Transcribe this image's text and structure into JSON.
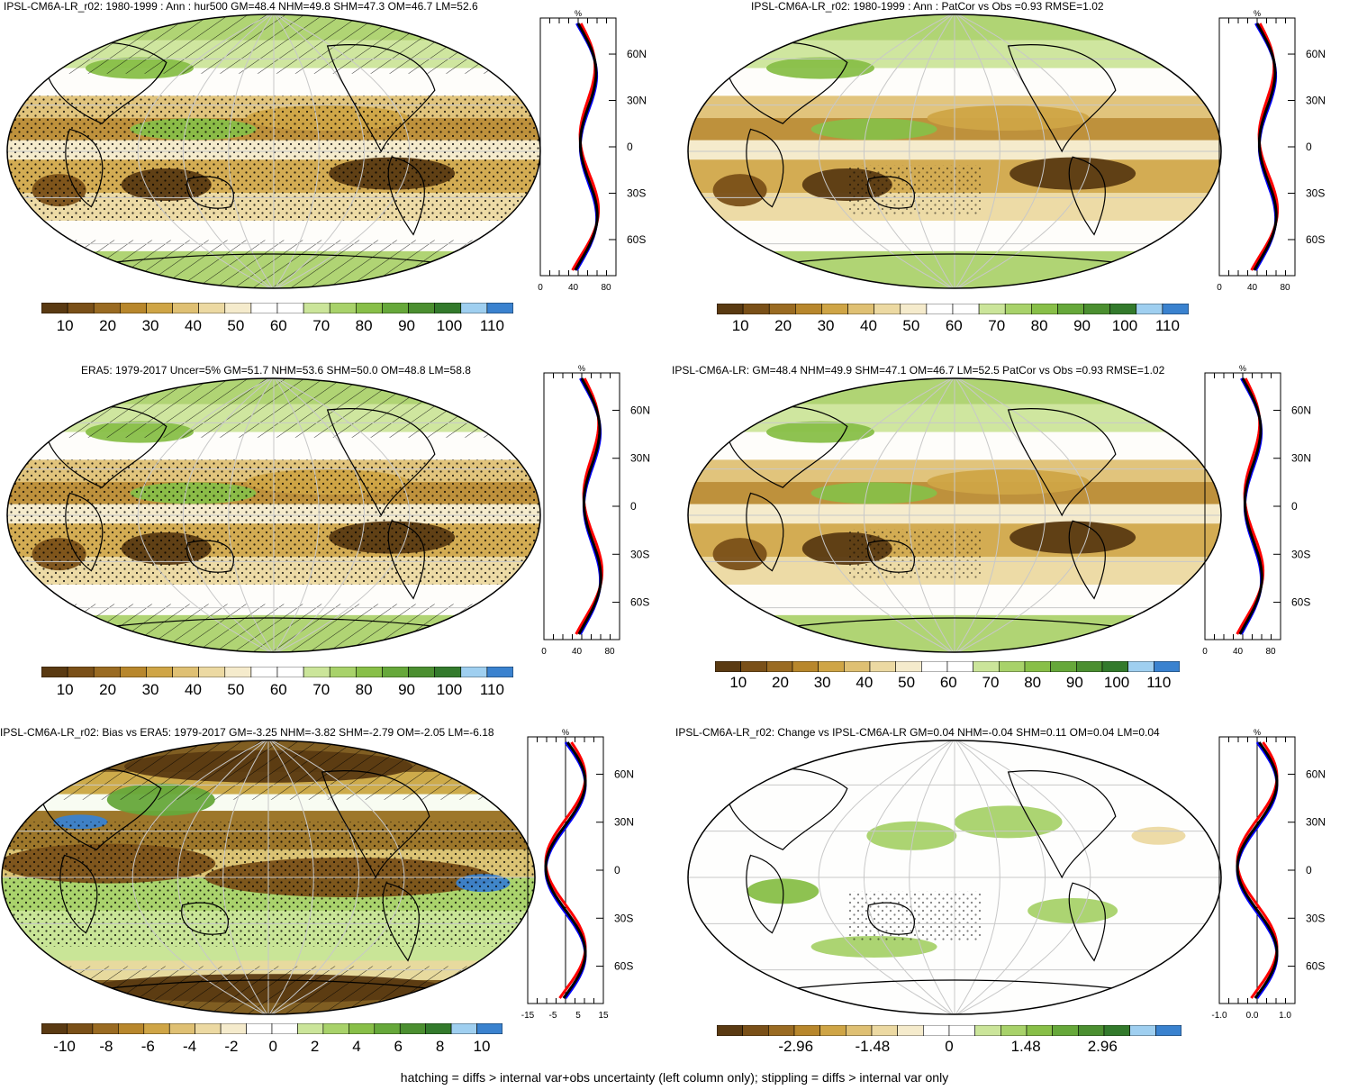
{
  "colors": {
    "scale": [
      "#5a3a12",
      "#7a5018",
      "#9a6b22",
      "#b8872c",
      "#cfa546",
      "#dfc073",
      "#ecd9a2",
      "#f5ebcc",
      "#ffffff",
      "#ffffff",
      "#cbe59a",
      "#a8d26a",
      "#88bf48",
      "#66a83a",
      "#4b8f30",
      "#337a2c",
      "#9fcff0",
      "#3a82cf"
    ],
    "hatch": "#000000",
    "model_line": "#ff0000",
    "obs_line": "#0000ff",
    "mean_line": "#000000"
  },
  "panels": [
    {
      "id": "p1",
      "title": "IPSL-CM6A-LR_r02: 1980-1999 : Ann : hur500 GM=48.4 NHM=49.8 SHM=47.3 OM=46.7 LM=52.6",
      "pattern": "stipple-hatch",
      "profile": {
        "unit": "%",
        "lat_ticks": [
          "60N",
          "30N",
          "0",
          "30S",
          "60S"
        ],
        "x_ticks": [
          "0",
          "40",
          "80"
        ]
      },
      "colorbar": {
        "labels": [
          "10",
          "20",
          "30",
          "40",
          "50",
          "60",
          "70",
          "80",
          "90",
          "100",
          "110"
        ]
      }
    },
    {
      "id": "p2",
      "title": "IPSL-CM6A-LR_r02: 1980-1999 : Ann : PatCor vs Obs =0.93 RMSE=1.02",
      "pattern": "sparse",
      "profile": {
        "unit": "%",
        "lat_ticks": [
          "60N",
          "30N",
          "0",
          "30S",
          "60S"
        ],
        "x_ticks": [
          "0",
          "40",
          "80"
        ]
      },
      "colorbar": {
        "labels": [
          "10",
          "20",
          "30",
          "40",
          "50",
          "60",
          "70",
          "80",
          "90",
          "100",
          "110"
        ]
      }
    },
    {
      "id": "p3",
      "title": "ERA5: 1979-2017 Uncer=5% GM=51.7 NHM=53.6 SHM=50.0 OM=48.8 LM=58.8",
      "pattern": "stipple-hatch",
      "profile": {
        "unit": "%",
        "lat_ticks": [
          "60N",
          "30N",
          "0",
          "30S",
          "60S"
        ],
        "x_ticks": [
          "0",
          "40",
          "80"
        ]
      },
      "colorbar": {
        "labels": [
          "10",
          "20",
          "30",
          "40",
          "50",
          "60",
          "70",
          "80",
          "90",
          "100",
          "110"
        ]
      }
    },
    {
      "id": "p4",
      "title": "IPSL-CM6A-LR: GM=48.4 NHM=49.9 SHM=47.1 OM=46.7 LM=52.5 PatCor vs Obs =0.93 RMSE=1.02",
      "pattern": "sparse",
      "profile": {
        "unit": "%",
        "lat_ticks": [
          "60N",
          "30N",
          "0",
          "30S",
          "60S"
        ],
        "x_ticks": [
          "0",
          "40",
          "80"
        ]
      },
      "colorbar": {
        "labels": [
          "10",
          "20",
          "30",
          "40",
          "50",
          "60",
          "70",
          "80",
          "90",
          "100",
          "110"
        ]
      }
    },
    {
      "id": "p5",
      "title": "IPSL-CM6A-LR_r02: Bias vs ERA5: 1979-2017 GM=-3.25 NHM=-3.82 SHM=-2.79 OM=-2.05 LM=-6.18",
      "pattern": "stipple-hatch",
      "profile": {
        "unit": "%",
        "lat_ticks": [
          "60N",
          "30N",
          "0",
          "30S",
          "60S"
        ],
        "x_ticks": [
          "-15",
          "-5",
          "5",
          "15"
        ]
      },
      "colorbar": {
        "labels": [
          "-10",
          "-8",
          "-6",
          "-4",
          "-2",
          "0",
          "2",
          "4",
          "6",
          "8",
          "10"
        ]
      }
    },
    {
      "id": "p6",
      "title": "IPSL-CM6A-LR_r02: Change vs IPSL-CM6A-LR GM=0.04 NHM=-0.04 SHM=0.11 OM=0.04 LM=0.04",
      "pattern": "sparse",
      "profile": {
        "unit": "%",
        "lat_ticks": [
          "60N",
          "30N",
          "0",
          "30S",
          "60S"
        ],
        "x_ticks": [
          "-1.0",
          "0.0",
          "1.0"
        ]
      },
      "colorbar": {
        "labels": [
          "-2.96",
          "-1.48",
          "0",
          "1.48",
          "2.96"
        ]
      }
    }
  ],
  "footer": "hatching = diffs > internal var+obs uncertainty (left column only); stippling = diffs > internal var only"
}
